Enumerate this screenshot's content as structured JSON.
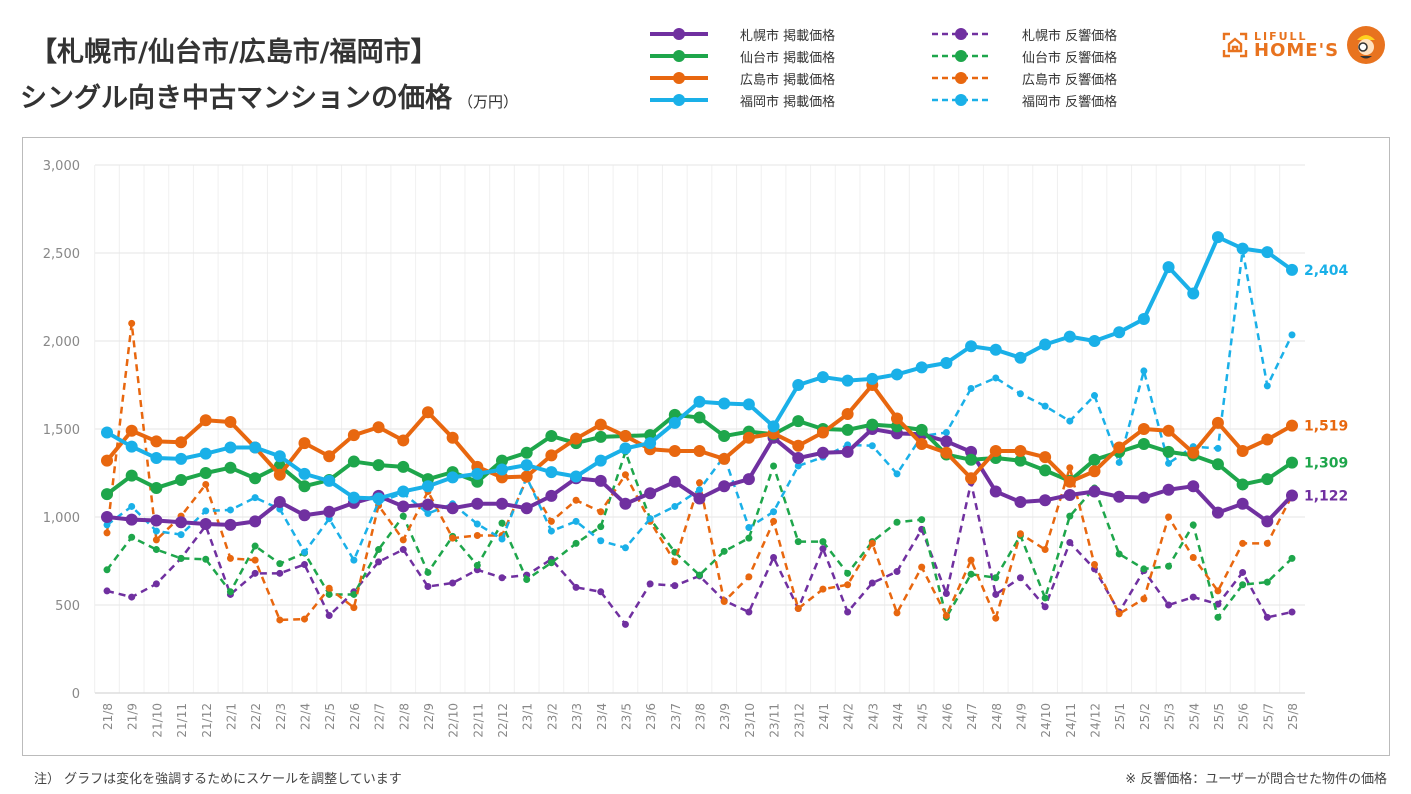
{
  "title": {
    "line1": "【札幌市/仙台市/広島市/福岡市】",
    "line2": "シングル向き中古マンションの価格",
    "unit": "（万円）"
  },
  "logo": {
    "line1": "LIFULL",
    "line2": "HOME'S",
    "icon": "house-icon"
  },
  "notes": {
    "left": "注）  グラフは変化を強調するためにスケールを調整しています",
    "right": "※ 反響価格：ユーザーが問合せた物件の価格"
  },
  "colors": {
    "sapporo": "#7030a0",
    "sendai": "#1ea64b",
    "hiroshima": "#e8670f",
    "fukuoka": "#1ab0e8"
  },
  "chart_data": {
    "type": "line",
    "title": "シングル向き中古マンションの価格",
    "xlabel": "",
    "ylabel": "万円",
    "ylim": [
      0,
      3000
    ],
    "yticks": [
      0,
      500,
      1000,
      1500,
      2000,
      2500,
      3000
    ],
    "ytick_labels": [
      "0",
      "500",
      "1,000",
      "1,500",
      "2,000",
      "2,500",
      "3,000"
    ],
    "grid": true,
    "legend_position": "top",
    "categories": [
      "21/8",
      "21/9",
      "21/10",
      "21/11",
      "21/12",
      "22/1",
      "22/2",
      "22/3",
      "22/4",
      "22/5",
      "22/6",
      "22/7",
      "22/8",
      "22/9",
      "22/10",
      "22/11",
      "22/12",
      "23/1",
      "23/2",
      "23/3",
      "23/4",
      "23/5",
      "23/6",
      "23/7",
      "23/8",
      "23/9",
      "23/10",
      "23/11",
      "23/12",
      "24/1",
      "24/2",
      "24/3",
      "24/4",
      "24/5",
      "24/6",
      "24/7",
      "24/8",
      "24/9",
      "24/10",
      "24/11",
      "24/12",
      "25/1",
      "25/2",
      "25/3",
      "25/4",
      "25/5",
      "25/6",
      "25/7",
      "25/8"
    ],
    "series": [
      {
        "name": "札幌市 掲載価格",
        "key": "sapporo",
        "style": "solid",
        "values": [
          1000,
          985,
          980,
          970,
          960,
          955,
          975,
          1085,
          1010,
          1030,
          1080,
          1120,
          1060,
          1070,
          1050,
          1075,
          1075,
          1050,
          1120,
          1220,
          1205,
          1075,
          1135,
          1200,
          1105,
          1175,
          1215,
          1450,
          1335,
          1365,
          1370,
          1500,
          1475,
          1470,
          1430,
          1370,
          1145,
          1085,
          1095,
          1125,
          1145,
          1115,
          1110,
          1155,
          1175,
          1025,
          1075,
          975,
          1122
        ],
        "end_label": "1,122"
      },
      {
        "name": "仙台市 掲載価格",
        "key": "sendai",
        "style": "solid",
        "values": [
          1130,
          1235,
          1165,
          1210,
          1250,
          1280,
          1220,
          1290,
          1175,
          1210,
          1315,
          1295,
          1285,
          1215,
          1255,
          1200,
          1320,
          1365,
          1460,
          1420,
          1455,
          1460,
          1465,
          1580,
          1565,
          1460,
          1485,
          1470,
          1545,
          1500,
          1495,
          1525,
          1515,
          1495,
          1355,
          1325,
          1335,
          1320,
          1265,
          1205,
          1325,
          1370,
          1415,
          1370,
          1350,
          1300,
          1185,
          1215,
          1309
        ],
        "end_label": "1,309"
      },
      {
        "name": "広島市 掲載価格",
        "key": "hiroshima",
        "style": "solid",
        "values": [
          1320,
          1490,
          1430,
          1425,
          1550,
          1540,
          1395,
          1240,
          1420,
          1345,
          1465,
          1510,
          1435,
          1595,
          1450,
          1285,
          1225,
          1230,
          1350,
          1445,
          1525,
          1460,
          1385,
          1375,
          1375,
          1330,
          1450,
          1475,
          1405,
          1480,
          1585,
          1750,
          1560,
          1415,
          1365,
          1220,
          1375,
          1375,
          1340,
          1200,
          1260,
          1395,
          1500,
          1490,
          1365,
          1535,
          1375,
          1440,
          1519
        ],
        "end_label": "1,519"
      },
      {
        "name": "福岡市 掲載価格",
        "key": "fukuoka",
        "style": "solid",
        "values": [
          1480,
          1400,
          1335,
          1330,
          1360,
          1395,
          1395,
          1345,
          1245,
          1205,
          1110,
          1105,
          1145,
          1175,
          1225,
          1245,
          1270,
          1295,
          1255,
          1230,
          1320,
          1390,
          1420,
          1535,
          1655,
          1645,
          1640,
          1515,
          1750,
          1795,
          1775,
          1785,
          1810,
          1850,
          1875,
          1970,
          1950,
          1905,
          1980,
          2025,
          2000,
          2050,
          2125,
          2420,
          2270,
          2590,
          2525,
          2505,
          2404
        ],
        "end_label": "2,404"
      },
      {
        "name": "札幌市 反響価格",
        "key": "sapporo",
        "style": "dashed",
        "values": [
          580,
          545,
          620,
          765,
          950,
          560,
          680,
          680,
          730,
          440,
          575,
          745,
          815,
          605,
          625,
          700,
          655,
          670,
          760,
          600,
          575,
          390,
          620,
          610,
          665,
          525,
          460,
          770,
          480,
          820,
          460,
          625,
          690,
          930,
          565,
          1195,
          560,
          655,
          490,
          855,
          705,
          460,
          695,
          500,
          545,
          505,
          685,
          430,
          460
        ]
      },
      {
        "name": "仙台市 反響価格",
        "key": "sendai",
        "style": "dashed",
        "values": [
          700,
          885,
          815,
          765,
          760,
          575,
          835,
          735,
          795,
          560,
          560,
          815,
          1005,
          685,
          890,
          725,
          965,
          645,
          740,
          850,
          945,
          1370,
          990,
          800,
          670,
          805,
          880,
          1290,
          860,
          860,
          680,
          860,
          970,
          985,
          430,
          675,
          655,
          895,
          540,
          1005,
          1165,
          790,
          705,
          720,
          955,
          430,
          615,
          630,
          765
        ]
      },
      {
        "name": "広島市 反響価格",
        "key": "hiroshima",
        "style": "dashed",
        "values": [
          910,
          2100,
          870,
          1005,
          1185,
          765,
          755,
          415,
          420,
          595,
          485,
          1065,
          870,
          1145,
          880,
          895,
          895,
          1215,
          975,
          1095,
          1030,
          1240,
          975,
          745,
          1195,
          520,
          660,
          975,
          480,
          590,
          615,
          850,
          455,
          715,
          440,
          755,
          425,
          905,
          815,
          1280,
          730,
          450,
          535,
          1000,
          770,
          580,
          850,
          850,
          1122
        ]
      },
      {
        "name": "福岡市 反響価格",
        "key": "fukuoka",
        "style": "dashed",
        "values": [
          955,
          1060,
          920,
          900,
          1035,
          1040,
          1110,
          1045,
          800,
          990,
          755,
          1085,
          1135,
          1020,
          1075,
          960,
          875,
          1225,
          920,
          975,
          865,
          825,
          990,
          1060,
          1155,
          1345,
          940,
          1030,
          1290,
          1340,
          1410,
          1405,
          1245,
          1460,
          1480,
          1730,
          1790,
          1700,
          1630,
          1545,
          1690,
          1310,
          1830,
          1305,
          1400,
          1390,
          2515,
          1745,
          2035
        ]
      }
    ]
  }
}
